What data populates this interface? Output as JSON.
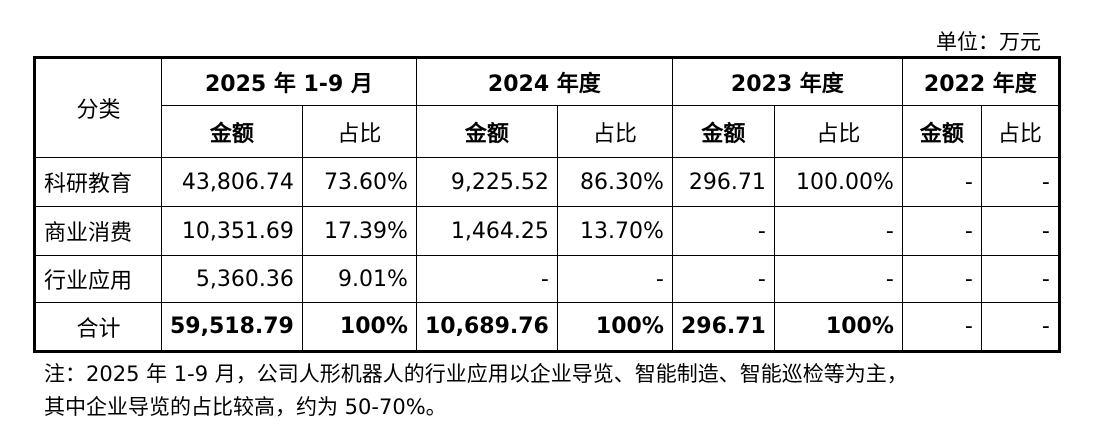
{
  "unit": "单位：万元",
  "table": {
    "header": {
      "category": "分类",
      "periods": [
        "2025 年 1-9 月",
        "2024 年度",
        "2023 年度",
        "2022 年度"
      ],
      "subheaders": [
        "金额",
        "占比",
        "金额",
        "占比",
        "金额",
        "占比",
        "金额",
        "占比"
      ]
    },
    "rows": [
      [
        "科研教育",
        "43,806.74",
        "73.60%",
        "9,225.52",
        "86.30%",
        "296.71",
        "100.00%",
        "-",
        "-"
      ],
      [
        "商业消费",
        "10,351.69",
        "17.39%",
        "1,464.25",
        "13.70%",
        "-",
        "-",
        "-",
        "-"
      ],
      [
        "行业应用",
        "5,360.36",
        "9.01%",
        "-",
        "-",
        "-",
        "-",
        "-",
        "-"
      ],
      [
        "合计",
        "59,518.79",
        "100%",
        "10,689.76",
        "100%",
        "296.71",
        "100%",
        "-",
        "-"
      ]
    ]
  },
  "note": [
    "注：2025 年 1-9 月，公司人形机器人的行业应用以企业导览、智能制造、智能巡检等为主，",
    "其中企业导览的占比较高，约为 50-70%。"
  ]
}
